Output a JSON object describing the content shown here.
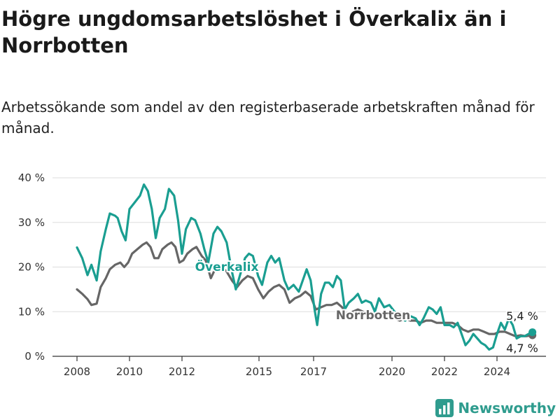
{
  "chart_data": {
    "type": "line",
    "title": "Högre ungdomsarbetslöshet i Överkalix än i Norrbotten",
    "subtitle": "Arbetssökande som andel av den registerbaserade arbetskraften månad för månad.",
    "xlabel": "",
    "ylabel": "",
    "ylim": [
      0,
      40
    ],
    "xlim": [
      2008,
      2025.5
    ],
    "yticks": [
      "0 %",
      "10 %",
      "20 %",
      "30 %",
      "40 %"
    ],
    "yticks_values": [
      0,
      10,
      20,
      30,
      40
    ],
    "xticks": [
      "2008",
      "2010",
      "2012",
      "2015",
      "2017",
      "2020",
      "2022",
      "2024"
    ],
    "grid": true,
    "series": [
      {
        "name": "Överkalix",
        "color": "#1a9e91",
        "end_label": "5,4 %",
        "points": [
          [
            2008.0,
            24.4
          ],
          [
            2008.2,
            22.0
          ],
          [
            2008.4,
            18.2
          ],
          [
            2008.55,
            20.5
          ],
          [
            2008.75,
            17.0
          ],
          [
            2008.9,
            23.5
          ],
          [
            2009.1,
            28.5
          ],
          [
            2009.25,
            32.0
          ],
          [
            2009.45,
            31.5
          ],
          [
            2009.55,
            31.0
          ],
          [
            2009.7,
            28.0
          ],
          [
            2009.85,
            26.0
          ],
          [
            2010.0,
            33.0
          ],
          [
            2010.2,
            34.5
          ],
          [
            2010.4,
            36.0
          ],
          [
            2010.55,
            38.5
          ],
          [
            2010.7,
            37.0
          ],
          [
            2010.85,
            33.0
          ],
          [
            2011.0,
            26.5
          ],
          [
            2011.15,
            31.0
          ],
          [
            2011.35,
            33.0
          ],
          [
            2011.5,
            37.5
          ],
          [
            2011.7,
            36.0
          ],
          [
            2011.85,
            30.5
          ],
          [
            2012.0,
            23.0
          ],
          [
            2012.15,
            28.5
          ],
          [
            2012.35,
            31.0
          ],
          [
            2012.5,
            30.5
          ],
          [
            2012.7,
            27.5
          ],
          [
            2012.85,
            24.0
          ],
          [
            2013.0,
            21.0
          ],
          [
            2013.2,
            27.5
          ],
          [
            2013.35,
            29.0
          ],
          [
            2013.5,
            28.0
          ],
          [
            2013.7,
            25.5
          ],
          [
            2013.9,
            19.0
          ],
          [
            2014.05,
            15.0
          ],
          [
            2014.25,
            19.0
          ],
          [
            2014.4,
            22.0
          ],
          [
            2014.55,
            23.0
          ],
          [
            2014.7,
            22.5
          ],
          [
            2014.9,
            18.0
          ],
          [
            2015.05,
            16.0
          ],
          [
            2015.25,
            21.0
          ],
          [
            2015.4,
            22.5
          ],
          [
            2015.55,
            21.0
          ],
          [
            2015.7,
            22.0
          ],
          [
            2015.9,
            17.0
          ],
          [
            2016.05,
            15.0
          ],
          [
            2016.25,
            16.0
          ],
          [
            2016.45,
            14.5
          ],
          [
            2016.6,
            17.0
          ],
          [
            2016.75,
            19.5
          ],
          [
            2016.9,
            17.0
          ],
          [
            2017.05,
            10.5
          ],
          [
            2017.15,
            7.0
          ],
          [
            2017.3,
            14.0
          ],
          [
            2017.45,
            16.5
          ],
          [
            2017.6,
            16.5
          ],
          [
            2017.75,
            15.5
          ],
          [
            2017.9,
            18.0
          ],
          [
            2018.05,
            17.0
          ],
          [
            2018.2,
            10.5
          ],
          [
            2018.35,
            12.0
          ],
          [
            2018.55,
            13.0
          ],
          [
            2018.7,
            14.0
          ],
          [
            2018.85,
            12.0
          ],
          [
            2019.0,
            12.5
          ],
          [
            2019.2,
            12.0
          ],
          [
            2019.35,
            10.0
          ],
          [
            2019.5,
            13.0
          ],
          [
            2019.7,
            11.0
          ],
          [
            2019.9,
            11.5
          ],
          [
            2020.1,
            10.0
          ],
          [
            2020.3,
            9.0
          ],
          [
            2020.5,
            8.0
          ],
          [
            2020.7,
            9.0
          ],
          [
            2020.9,
            8.5
          ],
          [
            2021.05,
            7.0
          ],
          [
            2021.2,
            8.5
          ],
          [
            2021.4,
            11.0
          ],
          [
            2021.55,
            10.5
          ],
          [
            2021.7,
            9.5
          ],
          [
            2021.85,
            11.0
          ],
          [
            2022.0,
            7.0
          ],
          [
            2022.2,
            7.0
          ],
          [
            2022.35,
            6.5
          ],
          [
            2022.5,
            7.5
          ],
          [
            2022.65,
            5.0
          ],
          [
            2022.8,
            2.5
          ],
          [
            2022.95,
            3.5
          ],
          [
            2023.1,
            5.0
          ],
          [
            2023.25,
            4.0
          ],
          [
            2023.4,
            3.0
          ],
          [
            2023.55,
            2.5
          ],
          [
            2023.7,
            1.5
          ],
          [
            2023.85,
            2.0
          ],
          [
            2024.0,
            5.0
          ],
          [
            2024.15,
            7.5
          ],
          [
            2024.3,
            6.0
          ],
          [
            2024.45,
            8.5
          ],
          [
            2024.6,
            7.0
          ],
          [
            2024.75,
            4.0
          ],
          [
            2024.9,
            4.5
          ],
          [
            2025.05,
            4.5
          ],
          [
            2025.2,
            5.0
          ],
          [
            2025.35,
            5.4
          ]
        ]
      },
      {
        "name": "Norrbotten",
        "color": "#666666",
        "end_label": "4,7 %",
        "points": [
          [
            2008.0,
            15.0
          ],
          [
            2008.2,
            14.0
          ],
          [
            2008.4,
            12.8
          ],
          [
            2008.55,
            11.5
          ],
          [
            2008.75,
            11.8
          ],
          [
            2008.9,
            15.5
          ],
          [
            2009.1,
            17.5
          ],
          [
            2009.25,
            19.5
          ],
          [
            2009.45,
            20.5
          ],
          [
            2009.65,
            21.0
          ],
          [
            2009.8,
            20.0
          ],
          [
            2009.95,
            21.0
          ],
          [
            2010.1,
            23.0
          ],
          [
            2010.3,
            24.0
          ],
          [
            2010.5,
            25.0
          ],
          [
            2010.65,
            25.5
          ],
          [
            2010.8,
            24.5
          ],
          [
            2010.95,
            22.0
          ],
          [
            2011.1,
            22.0
          ],
          [
            2011.25,
            24.0
          ],
          [
            2011.45,
            25.0
          ],
          [
            2011.6,
            25.5
          ],
          [
            2011.75,
            24.5
          ],
          [
            2011.9,
            21.0
          ],
          [
            2012.05,
            21.5
          ],
          [
            2012.2,
            23.0
          ],
          [
            2012.4,
            24.0
          ],
          [
            2012.55,
            24.5
          ],
          [
            2012.75,
            22.5
          ],
          [
            2012.9,
            21.5
          ],
          [
            2013.1,
            17.5
          ],
          [
            2013.3,
            20.0
          ],
          [
            2013.5,
            20.0
          ],
          [
            2013.7,
            19.0
          ],
          [
            2013.9,
            17.0
          ],
          [
            2014.1,
            15.5
          ],
          [
            2014.3,
            17.0
          ],
          [
            2014.5,
            18.0
          ],
          [
            2014.7,
            17.5
          ],
          [
            2014.9,
            15.0
          ],
          [
            2015.1,
            13.0
          ],
          [
            2015.3,
            14.5
          ],
          [
            2015.5,
            15.5
          ],
          [
            2015.7,
            16.0
          ],
          [
            2015.9,
            15.0
          ],
          [
            2016.1,
            12.0
          ],
          [
            2016.3,
            13.0
          ],
          [
            2016.5,
            13.5
          ],
          [
            2016.7,
            14.5
          ],
          [
            2016.9,
            13.5
          ],
          [
            2017.1,
            10.5
          ],
          [
            2017.3,
            11.0
          ],
          [
            2017.5,
            11.5
          ],
          [
            2017.7,
            11.5
          ],
          [
            2017.9,
            12.0
          ],
          [
            2018.1,
            11.0
          ],
          [
            2018.3,
            9.0
          ],
          [
            2018.5,
            10.0
          ],
          [
            2018.7,
            10.5
          ],
          [
            2018.9,
            10.0
          ],
          [
            2019.1,
            9.5
          ],
          [
            2019.3,
            9.0
          ],
          [
            2019.5,
            9.5
          ],
          [
            2019.7,
            9.0
          ],
          [
            2019.9,
            8.5
          ],
          [
            2020.1,
            8.5
          ],
          [
            2020.3,
            8.0
          ],
          [
            2020.5,
            8.5
          ],
          [
            2020.7,
            8.0
          ],
          [
            2020.9,
            8.0
          ],
          [
            2021.1,
            7.5
          ],
          [
            2021.3,
            8.0
          ],
          [
            2021.5,
            8.0
          ],
          [
            2021.7,
            7.5
          ],
          [
            2021.9,
            7.5
          ],
          [
            2022.1,
            7.5
          ],
          [
            2022.3,
            7.5
          ],
          [
            2022.5,
            7.0
          ],
          [
            2022.7,
            6.0
          ],
          [
            2022.9,
            5.5
          ],
          [
            2023.1,
            6.0
          ],
          [
            2023.3,
            6.0
          ],
          [
            2023.5,
            5.5
          ],
          [
            2023.7,
            5.0
          ],
          [
            2023.9,
            5.0
          ],
          [
            2024.1,
            5.5
          ],
          [
            2024.3,
            5.5
          ],
          [
            2024.5,
            5.0
          ],
          [
            2024.7,
            4.5
          ],
          [
            2024.9,
            4.7
          ],
          [
            2025.1,
            4.5
          ],
          [
            2025.35,
            4.7
          ]
        ]
      }
    ]
  },
  "brand": {
    "name": "Newsworthy",
    "icon": "bar-chart-logo-icon"
  }
}
